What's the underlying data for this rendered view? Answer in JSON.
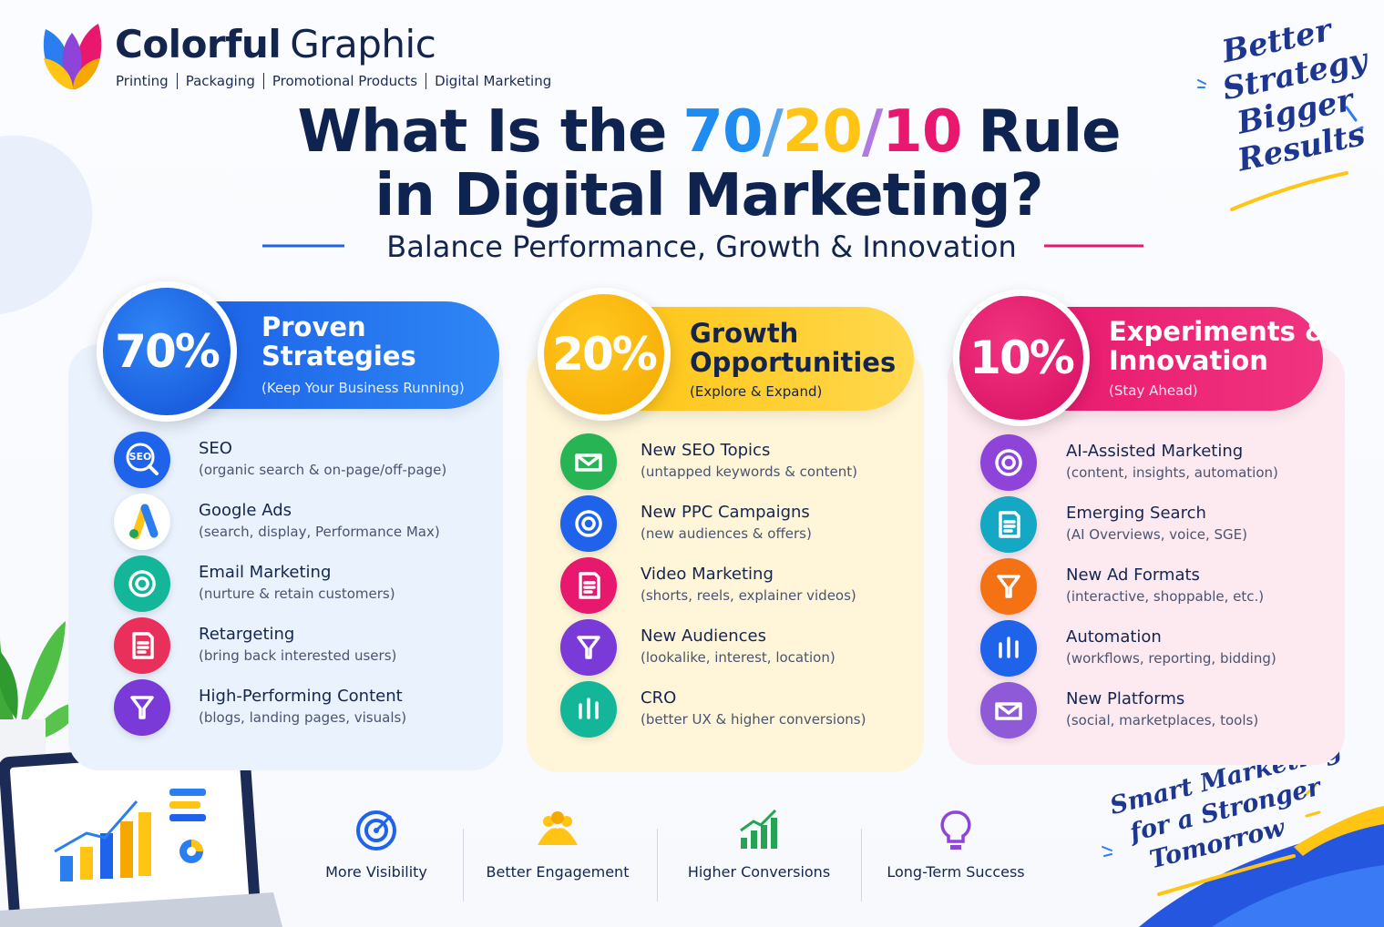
{
  "brand": {
    "name_bold": "Colorful",
    "name_light": "Graphic",
    "tagline": [
      "Printing",
      "Packaging",
      "Promotional Products",
      "Digital Marketing"
    ]
  },
  "title": {
    "line1": [
      "What Is the",
      "70",
      "/",
      "20",
      "/",
      "10",
      "Rule"
    ],
    "line2": "in Digital Marketing?"
  },
  "subtitle": "Balance Performance, Growth & Innovation",
  "note_top": [
    "Better",
    "Strategy",
    "Bigger",
    "Results"
  ],
  "note_bottom": [
    "Smart Marketing",
    "for a Stronger",
    "Tomorrow"
  ],
  "columns": [
    {
      "percent": "70%",
      "title": [
        "Proven",
        "Strategies"
      ],
      "note": "(Keep Your Business Running)",
      "items": [
        {
          "icon_text": "SEO",
          "name": "SEO",
          "detail": "(organic search & on-page/off-page)"
        },
        {
          "name": "Google Ads",
          "detail": "(search, display, Performance Max)"
        },
        {
          "name": "Email Marketing",
          "detail": "(nurture & retain customers)"
        },
        {
          "name": "Retargeting",
          "detail": "(bring back interested users)"
        },
        {
          "name": "High-Performing Content",
          "detail": "(blogs, landing pages, visuals)"
        }
      ]
    },
    {
      "percent": "20%",
      "title": [
        "Growth",
        "Opportunities"
      ],
      "note": "(Explore & Expand)",
      "items": [
        {
          "name": "New SEO Topics",
          "detail": "(untapped keywords & content)"
        },
        {
          "name": "New PPC Campaigns",
          "detail": "(new audiences & offers)"
        },
        {
          "name": "Video Marketing",
          "detail": "(shorts, reels, explainer videos)"
        },
        {
          "name": "New Audiences",
          "detail": "(lookalike, interest, location)"
        },
        {
          "name": "CRO",
          "detail": "(better UX & higher conversions)"
        }
      ]
    },
    {
      "percent": "10%",
      "title": [
        "Experiments &",
        "Innovation"
      ],
      "note": "(Stay Ahead)",
      "items": [
        {
          "name": "AI-Assisted Marketing",
          "detail": "(content, insights, automation)"
        },
        {
          "name": "Emerging Search",
          "detail": "(AI Overviews, voice, SGE)"
        },
        {
          "name": "New Ad Formats",
          "detail": "(interactive, shoppable, etc.)"
        },
        {
          "name": "Automation",
          "detail": "(workflows, reporting, bidding)"
        },
        {
          "name": "New Platforms",
          "detail": "(social, marketplaces, tools)"
        }
      ]
    }
  ],
  "benefits": [
    "More Visibility",
    "Better Engagement",
    "Higher Conversions",
    "Long-Term Success"
  ]
}
